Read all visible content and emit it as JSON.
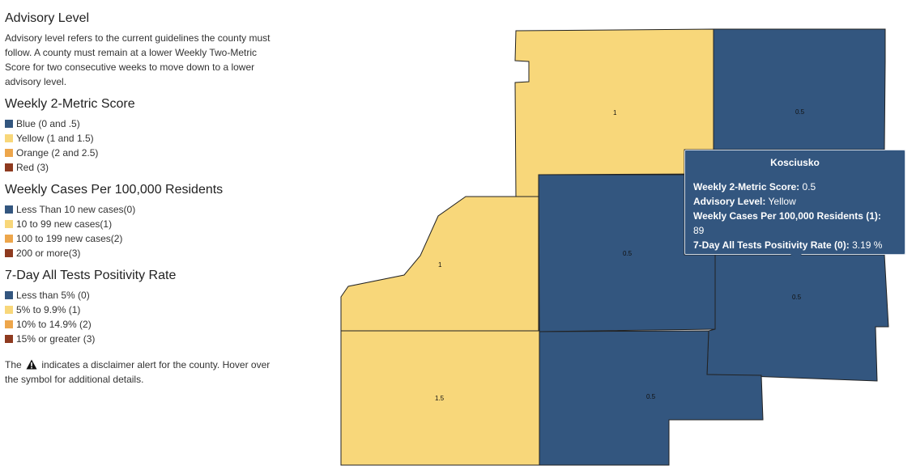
{
  "colors": {
    "blue": "#33567f",
    "yellow": "#f8d77a",
    "orange": "#eda64b",
    "red": "#8e3a1f",
    "border": "#222222"
  },
  "advisory": {
    "title": "Advisory Level",
    "description": "Advisory level refers to the current guidelines the county must follow. A county must remain at a lower Weekly Two-Metric Score for two consecutive weeks to move down to a lower advisory level."
  },
  "score": {
    "title": "Weekly 2-Metric Score",
    "items": [
      {
        "label": "Blue (0 and .5)",
        "color": "#33567f"
      },
      {
        "label": "Yellow (1 and 1.5)",
        "color": "#f8d77a"
      },
      {
        "label": "Orange (2 and 2.5)",
        "color": "#eda64b"
      },
      {
        "label": "Red (3)",
        "color": "#8e3a1f"
      }
    ]
  },
  "cases": {
    "title": "Weekly Cases Per 100,000 Residents",
    "items": [
      {
        "label": "Less Than 10 new cases(0)",
        "color": "#33567f"
      },
      {
        "label": "10 to 99 new cases(1)",
        "color": "#f8d77a"
      },
      {
        "label": "100 to 199 new cases(2)",
        "color": "#eda64b"
      },
      {
        "label": "200 or more(3)",
        "color": "#8e3a1f"
      }
    ]
  },
  "positivity": {
    "title": "7-Day All Tests Positivity Rate",
    "items": [
      {
        "label": "Less than 5% (0)",
        "color": "#33567f"
      },
      {
        "label": "5% to 9.9% (1)",
        "color": "#f8d77a"
      },
      {
        "label": "10% to 14.9% (2)",
        "color": "#eda64b"
      },
      {
        "label": "15% or greater (3)",
        "color": "#8e3a1f"
      }
    ]
  },
  "note": {
    "before": "The",
    "after": "indicates a disclaimer alert for the county. Hover over the symbol for additional details."
  },
  "map": {
    "counties": [
      {
        "label": "1",
        "fill": "#f8d77a"
      },
      {
        "label": "0.5",
        "fill": "#33567f"
      },
      {
        "label": "1",
        "fill": "#f8d77a"
      },
      {
        "label": "0.5",
        "fill": "#33567f"
      },
      {
        "label": "0.5",
        "fill": "#33567f"
      },
      {
        "label": "1.5",
        "fill": "#f8d77a"
      },
      {
        "label": "0.5",
        "fill": "#33567f"
      }
    ]
  },
  "tooltip": {
    "title": "Kosciusko",
    "score_label": "Weekly 2-Metric Score:",
    "score_value": "0.5",
    "advisory_label": "Advisory Level:",
    "advisory_value": "Yellow",
    "cases_label": "Weekly Cases Per 100,000 Residents (1):",
    "cases_value": "89",
    "positivity_label": "7-Day All Tests Positivity Rate (0):",
    "positivity_value": "3.19 %"
  }
}
